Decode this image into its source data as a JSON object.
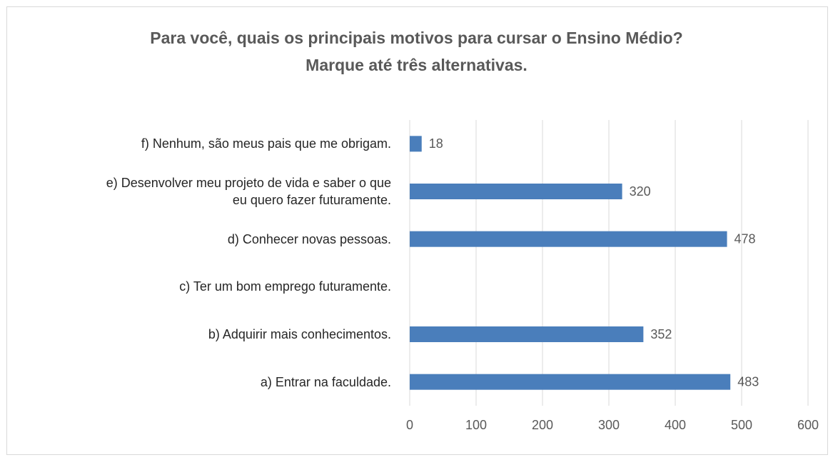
{
  "chart_data": {
    "type": "bar",
    "orientation": "horizontal",
    "title": [
      "Para você, quais os principais motivos para cursar o Ensino Médio?",
      "Marque até três alternativas."
    ],
    "categories": [
      "a) Entrar na faculdade.",
      "b) Adquirir mais conhecimentos.",
      "c) Ter um bom emprego futuramente.",
      "d) Conhecer novas pessoas.",
      "e) Desenvolver meu projeto de vida e saber o que eu quero fazer futuramente.",
      "f) Nenhum, são meus pais que me obrigam."
    ],
    "values": [
      483,
      352,
      null,
      478,
      320,
      18
    ],
    "color": "#4a7ebb",
    "xlim": [
      0,
      600
    ],
    "xticks": [
      0,
      100,
      200,
      300,
      400,
      500,
      600
    ],
    "grid": true
  }
}
